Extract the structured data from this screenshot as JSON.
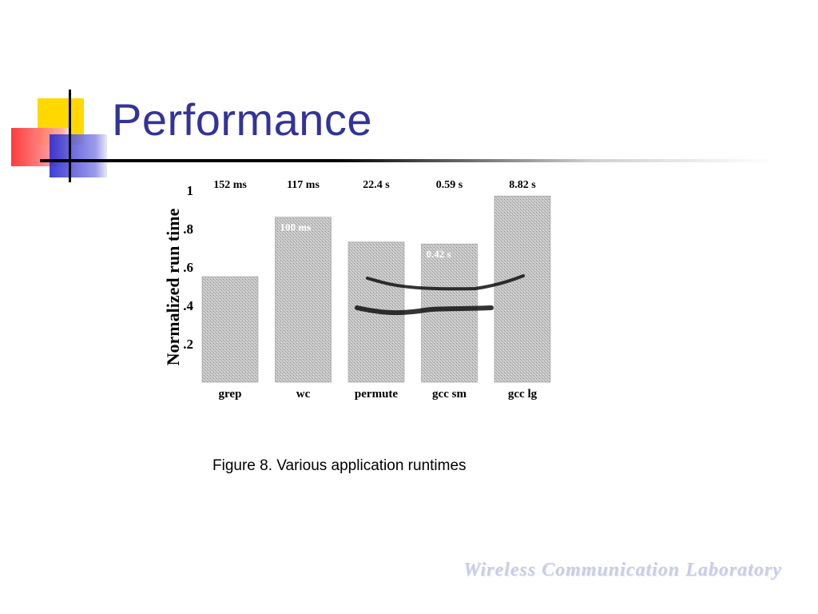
{
  "slide": {
    "title": "Performance",
    "caption": "Figure 8. Various application runtimes",
    "watermark": "Wireless Communication Laboratory"
  },
  "colors": {
    "title": "#33339a",
    "deco_yellow": "#ffd800",
    "deco_red": "#ff3b3b",
    "deco_blue": "#3a3ad6",
    "bar_fill": "#bdbdbd"
  },
  "chart_data": {
    "type": "bar",
    "categories": [
      "grep",
      "wc",
      "permute",
      "gcc sm",
      "gcc lg"
    ],
    "top_labels": [
      "152 ms",
      "117 ms",
      "22.4 s",
      "0.59 s",
      "8.82 s"
    ],
    "values": [
      0.55,
      0.86,
      0.73,
      0.72,
      0.97
    ],
    "bar_labels": [
      "",
      "100 ms",
      "",
      "0.42 s",
      ""
    ],
    "ylabel": "Normalized run time",
    "yticks": [
      "1",
      ".8",
      ".6",
      ".4",
      ".2"
    ],
    "ytick_values": [
      1,
      0.8,
      0.6,
      0.4,
      0.2
    ],
    "ylim": [
      0,
      1
    ]
  }
}
